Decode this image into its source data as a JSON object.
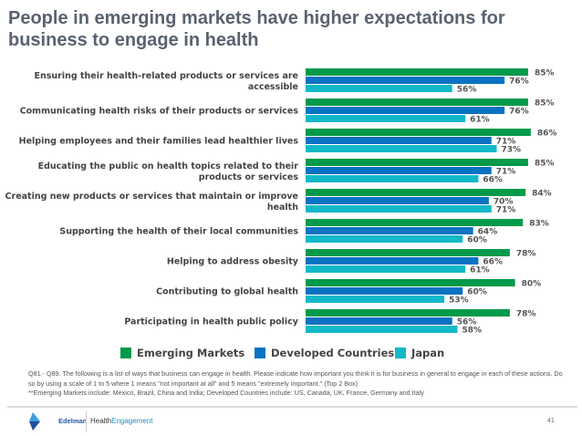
{
  "title": "People in emerging markets have higher expectations for business to engage in health",
  "chart_data": {
    "type": "bar",
    "orientation": "horizontal",
    "categories": [
      "Ensuring their health-related products or services are accessible",
      "Communicating health risks of their products or services",
      "Helping employees and their families lead healthier lives",
      "Educating the public on health topics related to their products or services",
      "Creating new products or services that maintain or improve health",
      "Supporting the health of their local communities",
      "Helping to address obesity",
      "Contributing to global health",
      "Participating in health public policy"
    ],
    "series": [
      {
        "name": "Emerging Markets",
        "color": "#009a4a",
        "values": [
          85,
          85,
          86,
          85,
          84,
          83,
          78,
          80,
          78
        ]
      },
      {
        "name": "Developed Countries",
        "color": "#0a72c2",
        "values": [
          76,
          76,
          71,
          71,
          70,
          64,
          66,
          60,
          56
        ]
      },
      {
        "name": "Japan",
        "color": "#13b8c8",
        "values": [
          56,
          61,
          73,
          66,
          71,
          60,
          61,
          53,
          58
        ]
      }
    ],
    "value_format": "%",
    "legend": "bottom",
    "grid": false
  },
  "footnote": {
    "line1": "Q81.- Q89.  The following is a list of ways that business can engage in health. Please indicate how important you think it is for business in general to engage in each of these actions. Do so by using a scale of 1 to 5 where 1 means \"not important at all\" and 5 means \"extremely important.\"  (Top 2 Box)",
    "line2": "**Emerging Markets include: Mexico, Brazil, China and India; Developed Countries include: US, Canada, UK, France, Germany and Italy"
  },
  "footer": {
    "brand": "Edelman",
    "product_a": "Health",
    "product_b": "Engagement",
    "page": "41"
  }
}
